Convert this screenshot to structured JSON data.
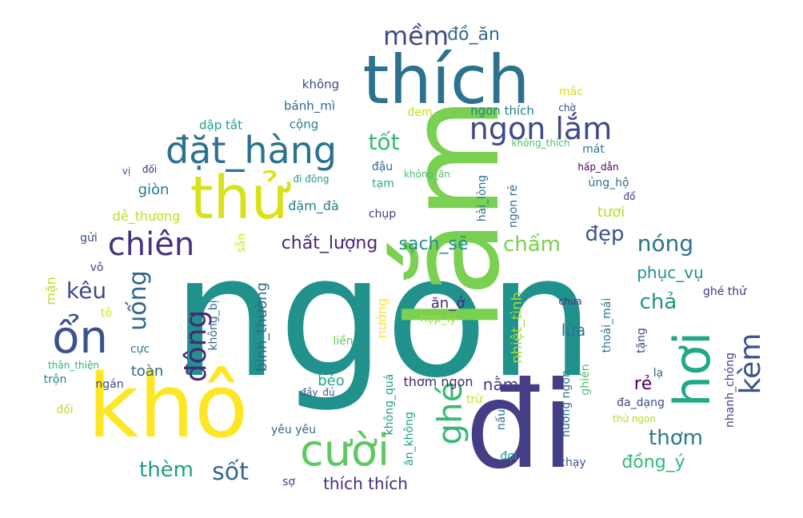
{
  "words": [
    {
      "text": "ngon",
      "color": "#21918c"
    },
    {
      "text": "lắm",
      "color": "#7ad151"
    },
    {
      "text": "đi",
      "color": "#433e85"
    },
    {
      "text": "khô",
      "color": "#fde725"
    },
    {
      "text": "thích",
      "color": "#2c728e"
    },
    {
      "text": "thử",
      "color": "#d8e219"
    },
    {
      "text": "hơi",
      "color": "#22a884"
    },
    {
      "text": "cười",
      "color": "#5ec962"
    },
    {
      "text": "ghé",
      "color": "#38b977"
    },
    {
      "text": "ổn",
      "color": "#3b528b"
    },
    {
      "text": "đặt_hàng",
      "color": "#2c728e"
    },
    {
      "text": "ngon lắm",
      "color": "#3e4a89"
    },
    {
      "text": "chiên",
      "color": "#46327e"
    },
    {
      "text": "đông",
      "color": "#482878"
    },
    {
      "text": "kèm",
      "color": "#3b528b"
    },
    {
      "text": "mềm",
      "color": "#3e4a89"
    },
    {
      "text": "đồ_ăn",
      "color": "#31688e"
    },
    {
      "text": "tốt",
      "color": "#35b779"
    },
    {
      "text": "nóng",
      "color": "#2c728e"
    },
    {
      "text": "đẹp",
      "color": "#3b528b"
    },
    {
      "text": "chấm",
      "color": "#7ad151"
    },
    {
      "text": "uống",
      "color": "#31688e"
    },
    {
      "text": "kêu",
      "color": "#3e4a89"
    },
    {
      "text": "sạch_sẽ",
      "color": "#21918c"
    },
    {
      "text": "chất_lượng",
      "color": "#482878"
    },
    {
      "text": "sốt",
      "color": "#31688e"
    },
    {
      "text": "thèm",
      "color": "#1f9e89"
    },
    {
      "text": "thơm",
      "color": "#2a788e"
    },
    {
      "text": "chả",
      "color": "#21918c"
    },
    {
      "text": "rẻ",
      "color": "#440154"
    },
    {
      "text": "đồng_ý",
      "color": "#35b779"
    },
    {
      "text": "thích thích",
      "color": "#472d7b"
    },
    {
      "text": "phục_vụ",
      "color": "#21918c"
    },
    {
      "text": "nằm",
      "color": "#443a83"
    },
    {
      "text": "toàn",
      "color": "#31688e"
    },
    {
      "text": "tươi",
      "color": "#b5de2b"
    },
    {
      "text": "lừa",
      "color": "#2c728e"
    },
    {
      "text": "ăn_ở",
      "color": "#482878"
    },
    {
      "text": "béo",
      "color": "#22a884"
    },
    {
      "text": "thơm ngon",
      "color": "#482878"
    },
    {
      "text": "giòn",
      "color": "#2a788e"
    },
    {
      "text": "bình_thường",
      "color": "#31688e"
    },
    {
      "text": "nhiệt_tình",
      "color": "#a0da39"
    },
    {
      "text": "nướng",
      "color": "#fde725"
    },
    {
      "text": "đặm_đà",
      "color": "#26828e"
    },
    {
      "text": "dễ_thương",
      "color": "#bddf26"
    },
    {
      "text": "mặn",
      "color": "#bddf26"
    },
    {
      "text": "không",
      "color": "#3e4a89"
    },
    {
      "text": "bánh_mì",
      "color": "#31688e"
    },
    {
      "text": "cộng",
      "color": "#26828e"
    },
    {
      "text": "dập tắt",
      "color": "#1f9e89"
    },
    {
      "text": "đem",
      "color": "#c2df23"
    },
    {
      "text": "ngon thích",
      "color": "#26828e"
    },
    {
      "text": "mắc",
      "color": "#d0e11c"
    },
    {
      "text": "chờ",
      "color": "#414487"
    },
    {
      "text": "không_thích",
      "color": "#4ac16d"
    },
    {
      "text": "mát",
      "color": "#2c728e"
    },
    {
      "text": "hấp_dẫn",
      "color": "#440154"
    },
    {
      "text": "ủng_hộ",
      "color": "#2c728e"
    },
    {
      "text": "đổ",
      "color": "#46327e"
    },
    {
      "text": "đậu",
      "color": "#31688e"
    },
    {
      "text": "tạm",
      "color": "#2db27d"
    },
    {
      "text": "không_ăn",
      "color": "#4ac16d"
    },
    {
      "text": "hài_lòng",
      "color": "#2c728e"
    },
    {
      "text": "ngon rẻ",
      "color": "#2c728e"
    },
    {
      "text": "chụp",
      "color": "#443a83"
    },
    {
      "text": "đi đông",
      "color": "#1f9e89"
    },
    {
      "text": "vị",
      "color": "#3b528b"
    },
    {
      "text": "đối",
      "color": "#482878"
    },
    {
      "text": "gửi",
      "color": "#3e4a89"
    },
    {
      "text": "sẵn",
      "color": "#d8e219"
    },
    {
      "text": "vô",
      "color": "#3e4a89"
    },
    {
      "text": "tô",
      "color": "#d0e11c"
    },
    {
      "text": "không_bị",
      "color": "#31688e"
    },
    {
      "text": "cực",
      "color": "#2a788e"
    },
    {
      "text": "liền",
      "color": "#5ec962"
    },
    {
      "text": "hợp_lý",
      "color": "#a0da39"
    },
    {
      "text": "ghé thử",
      "color": "#46327e"
    },
    {
      "text": "chua",
      "color": "#482878"
    },
    {
      "text": "thoải_mái",
      "color": "#2c728e"
    },
    {
      "text": "tặng",
      "color": "#3e4a89"
    },
    {
      "text": "nhanh_chóng",
      "color": "#414487"
    },
    {
      "text": "lạ",
      "color": "#31688e"
    },
    {
      "text": "không_quá",
      "color": "#1f9e89"
    },
    {
      "text": "ghiền",
      "color": "#4ac16d"
    },
    {
      "text": "đa_dạng",
      "color": "#3e4a89"
    },
    {
      "text": "thân_thiện",
      "color": "#2db27d"
    },
    {
      "text": "trộn",
      "color": "#26828e"
    },
    {
      "text": "ngán",
      "color": "#3e4a89"
    },
    {
      "text": "đầy_đủ",
      "color": "#3b528b"
    },
    {
      "text": "trừ",
      "color": "#c2df23"
    },
    {
      "text": "nướng ngon",
      "color": "#2c728e"
    },
    {
      "text": "nấu",
      "color": "#2c728e"
    },
    {
      "text": "thử ngon",
      "color": "#b5de2b"
    },
    {
      "text": "đổi",
      "color": "#c2df23"
    },
    {
      "text": "yêu yêu",
      "color": "#31688e"
    },
    {
      "text": "ăn_không",
      "color": "#1f9e89"
    },
    {
      "text": "đợi",
      "color": "#1f9e89"
    },
    {
      "text": "chạy",
      "color": "#3b528b"
    },
    {
      "text": "sợ",
      "color": "#414487"
    }
  ]
}
